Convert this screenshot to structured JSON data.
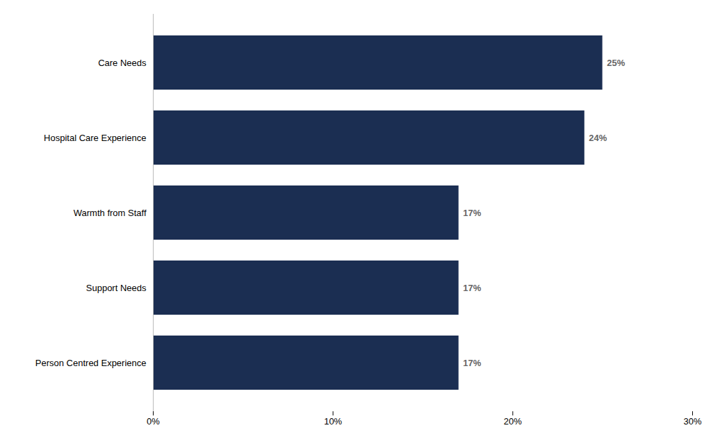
{
  "chart_data": {
    "type": "bar",
    "orientation": "horizontal",
    "categories": [
      "Person Centred Experience",
      "Support Needs",
      "Warmth from Staff",
      "Hospital Care Experience",
      "Care Needs"
    ],
    "values": [
      17,
      17,
      17,
      24,
      25
    ],
    "value_labels": [
      "17%",
      "17%",
      "17%",
      "24%",
      "25%"
    ],
    "data_labels": true,
    "color": "#1b2e52",
    "xlim": [
      0,
      30
    ],
    "xticks": [
      {
        "value": 0,
        "label": "0%"
      },
      {
        "value": 10,
        "label": "10%"
      },
      {
        "value": 20,
        "label": "20%"
      },
      {
        "value": 30,
        "label": "30%"
      }
    ],
    "grid": false
  }
}
